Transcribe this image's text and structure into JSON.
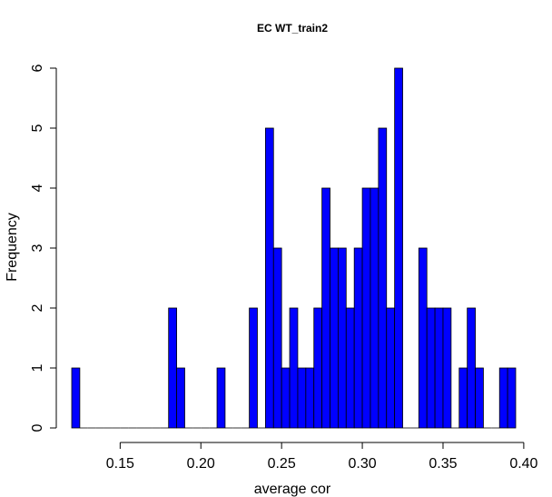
{
  "chart_data": {
    "type": "bar",
    "title": "EC WT_train2",
    "xlabel": "average cor",
    "ylabel": "Frequency",
    "xlim": [
      0.12,
      0.395
    ],
    "ylim": [
      0,
      6
    ],
    "bin_width": 0.005,
    "x_ticks": [
      "0.15",
      "0.20",
      "0.25",
      "0.30",
      "0.35",
      "0.40"
    ],
    "x_tick_values": [
      0.15,
      0.2,
      0.25,
      0.3,
      0.35,
      0.4
    ],
    "y_ticks": [
      "0",
      "1",
      "2",
      "3",
      "4",
      "5",
      "6"
    ],
    "y_tick_values": [
      0,
      1,
      2,
      3,
      4,
      5,
      6
    ],
    "bin_starts": [
      0.12,
      0.125,
      0.13,
      0.135,
      0.14,
      0.145,
      0.15,
      0.155,
      0.16,
      0.165,
      0.17,
      0.175,
      0.18,
      0.185,
      0.19,
      0.195,
      0.2,
      0.205,
      0.21,
      0.215,
      0.22,
      0.225,
      0.23,
      0.235,
      0.24,
      0.245,
      0.25,
      0.255,
      0.26,
      0.265,
      0.27,
      0.275,
      0.28,
      0.285,
      0.29,
      0.295,
      0.3,
      0.305,
      0.31,
      0.315,
      0.32,
      0.325,
      0.33,
      0.335,
      0.34,
      0.345,
      0.35,
      0.355,
      0.36,
      0.365,
      0.37,
      0.375,
      0.38,
      0.385,
      0.39
    ],
    "values": [
      1,
      0,
      0,
      0,
      0,
      0,
      0,
      0,
      0,
      0,
      0,
      0,
      2,
      1,
      0,
      0,
      0,
      0,
      1,
      0,
      0,
      0,
      2,
      0,
      5,
      3,
      1,
      2,
      1,
      1,
      2,
      4,
      3,
      3,
      2,
      3,
      4,
      4,
      5,
      2,
      6,
      0,
      0,
      3,
      2,
      2,
      2,
      0,
      1,
      2,
      1,
      0,
      0,
      1,
      1
    ],
    "bar_color": "#0000ff",
    "grid": false
  }
}
